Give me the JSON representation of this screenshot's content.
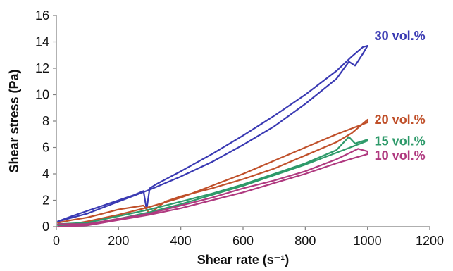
{
  "chart_data": {
    "type": "line",
    "xlabel": "Shear rate (s⁻¹)",
    "ylabel": "Shear stress (Pa)",
    "xlim": [
      0,
      1200
    ],
    "ylim": [
      0,
      16
    ],
    "x_ticks": [
      "0",
      "200",
      "400",
      "600",
      "800",
      "1000",
      "1200"
    ],
    "y_ticks": [
      "0",
      "2",
      "4",
      "6",
      "8",
      "10",
      "12",
      "14",
      "16"
    ],
    "x_tick_values": [
      0,
      200,
      400,
      600,
      800,
      1000,
      1200
    ],
    "y_tick_values": [
      0,
      2,
      4,
      6,
      8,
      10,
      12,
      14,
      16
    ],
    "grid": false,
    "legend": "none",
    "series": [
      {
        "name": "30 vol.%",
        "color": "#3a3ab3",
        "x": [
          5,
          50,
          100,
          150,
          200,
          250,
          280,
          290,
          300,
          320,
          400,
          500,
          600,
          700,
          800,
          900,
          950,
          985,
          1000,
          985,
          960,
          940,
          900,
          800,
          700,
          600,
          500,
          400,
          300,
          200,
          100,
          5
        ],
        "y": [
          0.4,
          0.8,
          1.2,
          1.6,
          2.0,
          2.4,
          2.7,
          1.3,
          2.9,
          3.2,
          4.2,
          5.5,
          6.9,
          8.4,
          10.0,
          11.8,
          12.9,
          13.6,
          13.7,
          13.1,
          12.2,
          12.5,
          11.2,
          9.3,
          7.6,
          6.2,
          4.9,
          3.8,
          2.8,
          1.9,
          1.0,
          0.4
        ]
      },
      {
        "name": "20 vol.%",
        "color": "#c0502a",
        "x": [
          5,
          50,
          100,
          150,
          200,
          280,
          300,
          350,
          400,
          500,
          600,
          700,
          800,
          900,
          950,
          1000,
          1000,
          900,
          800,
          700,
          600,
          500,
          400,
          300,
          200,
          100,
          50,
          5
        ],
        "y": [
          0.3,
          0.5,
          0.7,
          1.0,
          1.3,
          1.6,
          1.0,
          1.9,
          2.3,
          2.9,
          3.6,
          4.4,
          5.4,
          6.4,
          7.1,
          8.1,
          7.9,
          7.0,
          6.0,
          5.0,
          4.0,
          3.1,
          2.2,
          1.5,
          0.9,
          0.4,
          0.2,
          0.2
        ]
      },
      {
        "name": "15 vol.%",
        "color": "#2e9a6a",
        "x": [
          5,
          100,
          200,
          300,
          400,
          500,
          600,
          700,
          800,
          900,
          940,
          960,
          1000,
          1000,
          900,
          800,
          700,
          600,
          500,
          400,
          300,
          200,
          100,
          5
        ],
        "y": [
          0.2,
          0.3,
          0.8,
          1.3,
          1.9,
          2.5,
          3.2,
          4.0,
          4.8,
          5.8,
          6.8,
          6.3,
          6.6,
          6.5,
          5.6,
          4.7,
          3.9,
          3.1,
          2.4,
          1.7,
          1.1,
          0.6,
          0.2,
          0.1
        ]
      },
      {
        "name": "10 vol.%",
        "color": "#b03a80",
        "x": [
          5,
          100,
          200,
          300,
          400,
          500,
          600,
          700,
          800,
          900,
          970,
          1000,
          1000,
          900,
          800,
          700,
          600,
          500,
          400,
          300,
          200,
          100,
          5
        ],
        "y": [
          0.2,
          0.2,
          0.6,
          1.0,
          1.6,
          2.2,
          2.9,
          3.5,
          4.2,
          5.1,
          5.9,
          5.7,
          5.5,
          4.8,
          4.0,
          3.3,
          2.6,
          2.0,
          1.4,
          0.9,
          0.5,
          0.1,
          0.0
        ]
      }
    ]
  }
}
